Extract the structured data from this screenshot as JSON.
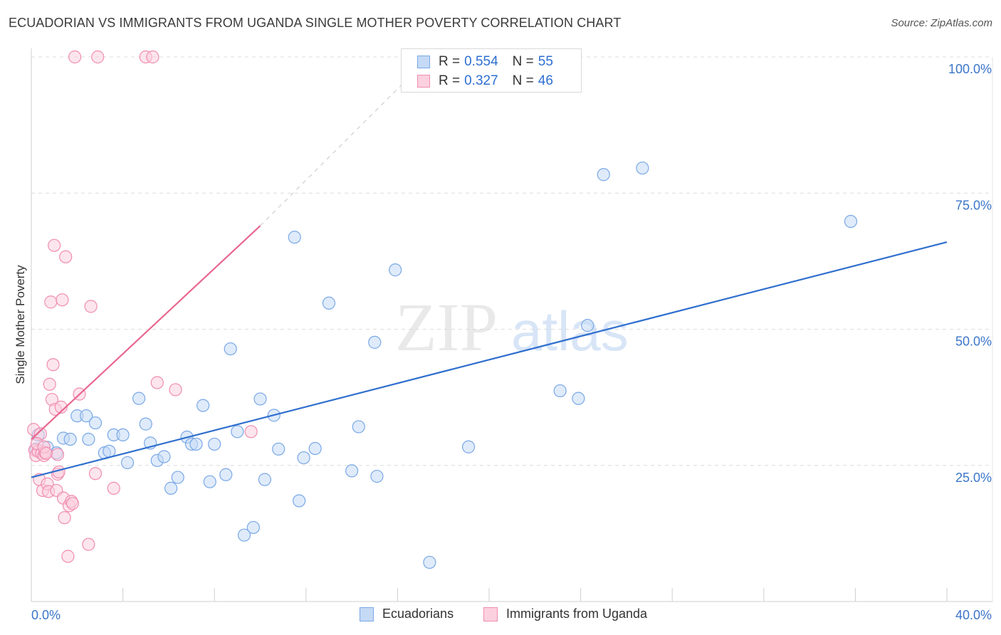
{
  "title": "ECUADORIAN VS IMMIGRANTS FROM UGANDA SINGLE MOTHER POVERTY CORRELATION CHART",
  "source": "Source: ZipAtlas.com",
  "watermark": {
    "zip": "ZIP",
    "atlas": "atlas"
  },
  "legend": {
    "r_label": "R =",
    "n_label": "N =",
    "rows": [
      {
        "r": "0.554",
        "n": "55",
        "color": "#7aa8e6",
        "fill": "#c5daf5"
      },
      {
        "r": "0.327",
        "n": "46",
        "color": "#f08db0",
        "fill": "#fcd0de"
      }
    ]
  },
  "bottom_legend": [
    {
      "label": "Ecuadorians",
      "color": "#7aa8e6",
      "fill": "#c5daf5"
    },
    {
      "label": "Immigrants from Uganda",
      "color": "#f08db0",
      "fill": "#fcd0de"
    }
  ],
  "chart_data": {
    "type": "scatter",
    "title": "ECUADORIAN VS IMMIGRANTS FROM UGANDA SINGLE MOTHER POVERTY CORRELATION CHART",
    "xlabel": "",
    "ylabel": "Single Mother Poverty",
    "xlim": [
      0,
      40
    ],
    "ylim": [
      0,
      100
    ],
    "x_tick_labels": [
      {
        "value": 0,
        "label": "0.0%"
      },
      {
        "value": 40,
        "label": "40.0%"
      }
    ],
    "y_tick_labels": [
      {
        "value": 25,
        "label": "25.0%"
      },
      {
        "value": 50,
        "label": "50.0%"
      },
      {
        "value": 75,
        "label": "75.0%"
      },
      {
        "value": 100,
        "label": "100.0%"
      }
    ],
    "series": [
      {
        "name": "Ecuadorians",
        "color": "#7aa8e6",
        "fill": "#c5daf5",
        "trend": {
          "x1": 0,
          "y1": 22.8,
          "x2": 40,
          "y2": 66.0,
          "color": "#2f6fce"
        },
        "points": [
          [
            0.3,
            30.6
          ],
          [
            0.7,
            28.3
          ],
          [
            1.1,
            27.3
          ],
          [
            1.4,
            30.0
          ],
          [
            1.7,
            29.8
          ],
          [
            2.0,
            34.1
          ],
          [
            2.4,
            34.1
          ],
          [
            2.5,
            29.8
          ],
          [
            2.8,
            32.8
          ],
          [
            3.2,
            27.3
          ],
          [
            3.4,
            27.6
          ],
          [
            3.6,
            30.6
          ],
          [
            4.0,
            30.6
          ],
          [
            4.2,
            25.5
          ],
          [
            4.7,
            37.3
          ],
          [
            5.0,
            32.6
          ],
          [
            5.2,
            29.1
          ],
          [
            5.5,
            25.9
          ],
          [
            5.8,
            26.6
          ],
          [
            6.1,
            20.8
          ],
          [
            6.4,
            22.8
          ],
          [
            6.8,
            30.2
          ],
          [
            7.0,
            28.9
          ],
          [
            7.2,
            28.9
          ],
          [
            7.5,
            36.0
          ],
          [
            7.8,
            22.0
          ],
          [
            8.0,
            28.9
          ],
          [
            8.5,
            23.3
          ],
          [
            8.7,
            46.4
          ],
          [
            9.0,
            31.2
          ],
          [
            9.3,
            12.2
          ],
          [
            9.7,
            13.6
          ],
          [
            10.0,
            37.2
          ],
          [
            10.2,
            22.4
          ],
          [
            10.6,
            34.2
          ],
          [
            10.8,
            28.0
          ],
          [
            11.5,
            66.9
          ],
          [
            11.7,
            18.5
          ],
          [
            11.9,
            26.4
          ],
          [
            12.4,
            28.1
          ],
          [
            13.0,
            54.8
          ],
          [
            14.0,
            24.0
          ],
          [
            14.3,
            32.1
          ],
          [
            15.0,
            47.6
          ],
          [
            15.1,
            23.0
          ],
          [
            15.9,
            60.9
          ],
          [
            17.4,
            7.2
          ],
          [
            19.1,
            28.4
          ],
          [
            23.1,
            38.7
          ],
          [
            23.9,
            37.3
          ],
          [
            24.3,
            50.7
          ],
          [
            25.0,
            78.4
          ],
          [
            26.7,
            79.6
          ],
          [
            35.8,
            69.8
          ],
          [
            0.2,
            28.0
          ]
        ]
      },
      {
        "name": "Immigrants from Uganda",
        "color": "#f08db0",
        "fill": "#fcd0de",
        "trend": {
          "x1": 0,
          "y1": 29.8,
          "x2": 10.0,
          "y2": 69.0,
          "color": "#e8678f",
          "dash_to": {
            "x": 17.4,
            "y": 100.0
          }
        },
        "points": [
          [
            0.1,
            31.6
          ],
          [
            0.15,
            27.8
          ],
          [
            0.2,
            26.8
          ],
          [
            0.3,
            27.6
          ],
          [
            0.35,
            22.4
          ],
          [
            0.4,
            30.8
          ],
          [
            0.45,
            27.2
          ],
          [
            0.5,
            20.4
          ],
          [
            0.55,
            26.8
          ],
          [
            0.6,
            27.4
          ],
          [
            0.7,
            21.6
          ],
          [
            0.75,
            20.2
          ],
          [
            0.8,
            39.9
          ],
          [
            0.85,
            55.0
          ],
          [
            0.9,
            37.1
          ],
          [
            0.95,
            43.5
          ],
          [
            1.0,
            65.4
          ],
          [
            1.05,
            35.3
          ],
          [
            1.1,
            20.4
          ],
          [
            1.15,
            23.4
          ],
          [
            1.2,
            23.8
          ],
          [
            1.3,
            35.7
          ],
          [
            1.35,
            55.4
          ],
          [
            1.4,
            19.0
          ],
          [
            1.45,
            15.4
          ],
          [
            1.5,
            63.3
          ],
          [
            1.6,
            8.3
          ],
          [
            1.65,
            17.6
          ],
          [
            1.75,
            18.4
          ],
          [
            1.8,
            18.0
          ],
          [
            1.9,
            100.0
          ],
          [
            2.1,
            38.1
          ],
          [
            2.5,
            10.5
          ],
          [
            2.6,
            54.2
          ],
          [
            2.8,
            23.5
          ],
          [
            2.9,
            100.0
          ],
          [
            3.6,
            20.8
          ],
          [
            5.0,
            100.0
          ],
          [
            5.3,
            100.0
          ],
          [
            5.5,
            40.2
          ],
          [
            6.3,
            38.9
          ],
          [
            9.6,
            31.2
          ],
          [
            0.25,
            29.0
          ],
          [
            0.55,
            28.4
          ],
          [
            1.15,
            27.0
          ],
          [
            0.65,
            27.2
          ]
        ]
      }
    ]
  }
}
